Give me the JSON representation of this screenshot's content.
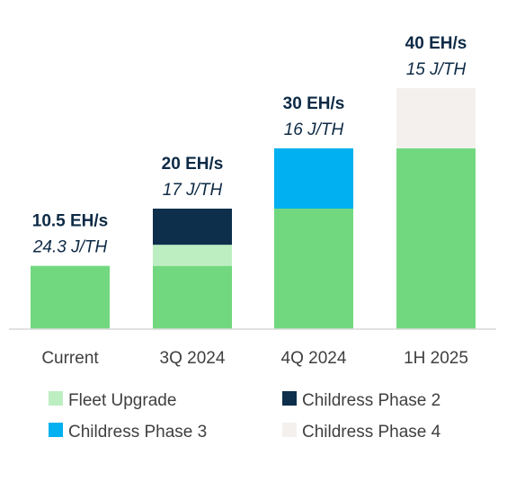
{
  "chart_data": {
    "type": "bar",
    "stacked": true,
    "categories": [
      "Current",
      "3Q 2024",
      "4Q 2024",
      "1H 2025"
    ],
    "series": [
      {
        "name": "",
        "color": "#72d87f",
        "values": [
          10.5,
          10.5,
          20,
          30
        ]
      },
      {
        "name": "Fleet Upgrade",
        "color": "#bdeec2",
        "values": [
          0,
          3.5,
          0,
          0
        ]
      },
      {
        "name": "Childress Phase 2",
        "color": "#0d2f4b",
        "values": [
          0,
          6,
          0,
          0
        ]
      },
      {
        "name": "Childress Phase 3",
        "color": "#00b0f0",
        "values": [
          0,
          0,
          10,
          0
        ]
      },
      {
        "name": "Childress Phase 4",
        "color": "#f4f0ee",
        "values": [
          0,
          0,
          0,
          10
        ]
      }
    ],
    "annotations": [
      {
        "category": "Current",
        "hashrate": "10.5 EH/s",
        "efficiency": "24.3 J/TH"
      },
      {
        "category": "3Q 2024",
        "hashrate": "20 EH/s",
        "efficiency": "17 J/TH"
      },
      {
        "category": "4Q 2024",
        "hashrate": "30 EH/s",
        "efficiency": "16 J/TH"
      },
      {
        "category": "1H 2025",
        "hashrate": "40 EH/s",
        "efficiency": "15 J/TH"
      }
    ],
    "legend": [
      {
        "label": "Fleet Upgrade",
        "color": "#bdeec2"
      },
      {
        "label": "Childress Phase 2",
        "color": "#0d2f4b"
      },
      {
        "label": "Childress Phase 3",
        "color": "#00b0f0"
      },
      {
        "label": "Childress Phase 4",
        "color": "#f4f0ee"
      }
    ],
    "legend_position": "bottom",
    "ylim": [
      0,
      40
    ],
    "grid": false,
    "title": "",
    "xlabel": "",
    "ylabel": ""
  }
}
